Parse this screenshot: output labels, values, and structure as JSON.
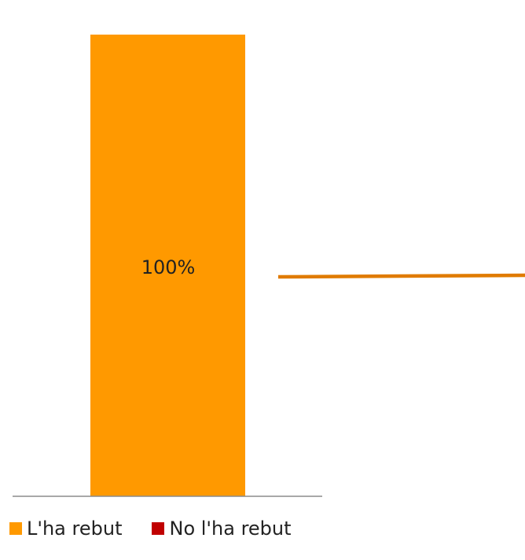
{
  "chart_data": {
    "type": "bar",
    "categories": [
      ""
    ],
    "series": [
      {
        "name": "L'ha rebut",
        "values": [
          100
        ],
        "color": "#FF9900"
      },
      {
        "name": "No l'ha rebut",
        "values": [
          0
        ],
        "color": "#C00000"
      }
    ],
    "data_labels": [
      "100%"
    ],
    "ylim": [
      0,
      100
    ],
    "stacked": true,
    "grid": false,
    "legend_position": "bottom-left",
    "leader_line_color": "#E07B00"
  }
}
